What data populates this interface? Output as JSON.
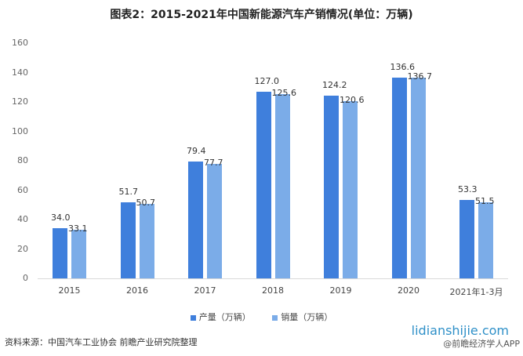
{
  "title": "图表2：2015-2021年中国新能源汽车产销情况(单位：万辆)",
  "colors": {
    "production": "#3f7fdc",
    "sales": "#7bace8"
  },
  "legend": {
    "production": "产量（万辆）",
    "sales": "销量（万辆）"
  },
  "source": "资料来源：中国汽车工业协会 前瞻产业研究院整理",
  "watermark": {
    "site": "lidianshijie.com",
    "app": "@前瞻经济学人APP"
  },
  "chart_data": {
    "type": "bar",
    "title": "图表2：2015-2021年中国新能源汽车产销情况(单位：万辆)",
    "categories": [
      "2015",
      "2016",
      "2017",
      "2018",
      "2019",
      "2020",
      "2021年1-3月"
    ],
    "series": [
      {
        "name": "产量（万辆）",
        "values": [
          34.0,
          51.7,
          79.4,
          127.0,
          124.2,
          136.6,
          53.3
        ]
      },
      {
        "name": "销量（万辆）",
        "values": [
          33.1,
          50.7,
          77.7,
          125.6,
          120.6,
          136.7,
          51.5
        ]
      }
    ],
    "value_labels": {
      "production": [
        "34.0",
        "51.7",
        "79.4",
        "127.0",
        "124.2",
        "136.6",
        "53.3"
      ],
      "sales": [
        "33.1",
        "50.7",
        "77.7",
        "125.6",
        "120.6",
        "136.7",
        "51.5"
      ]
    },
    "xlabel": "",
    "ylabel": "",
    "ylim": [
      0,
      160
    ],
    "yticks": [
      "0",
      "20",
      "40",
      "60",
      "80",
      "100",
      "120",
      "140",
      "160"
    ],
    "grid": false,
    "legend_position": "bottom"
  }
}
